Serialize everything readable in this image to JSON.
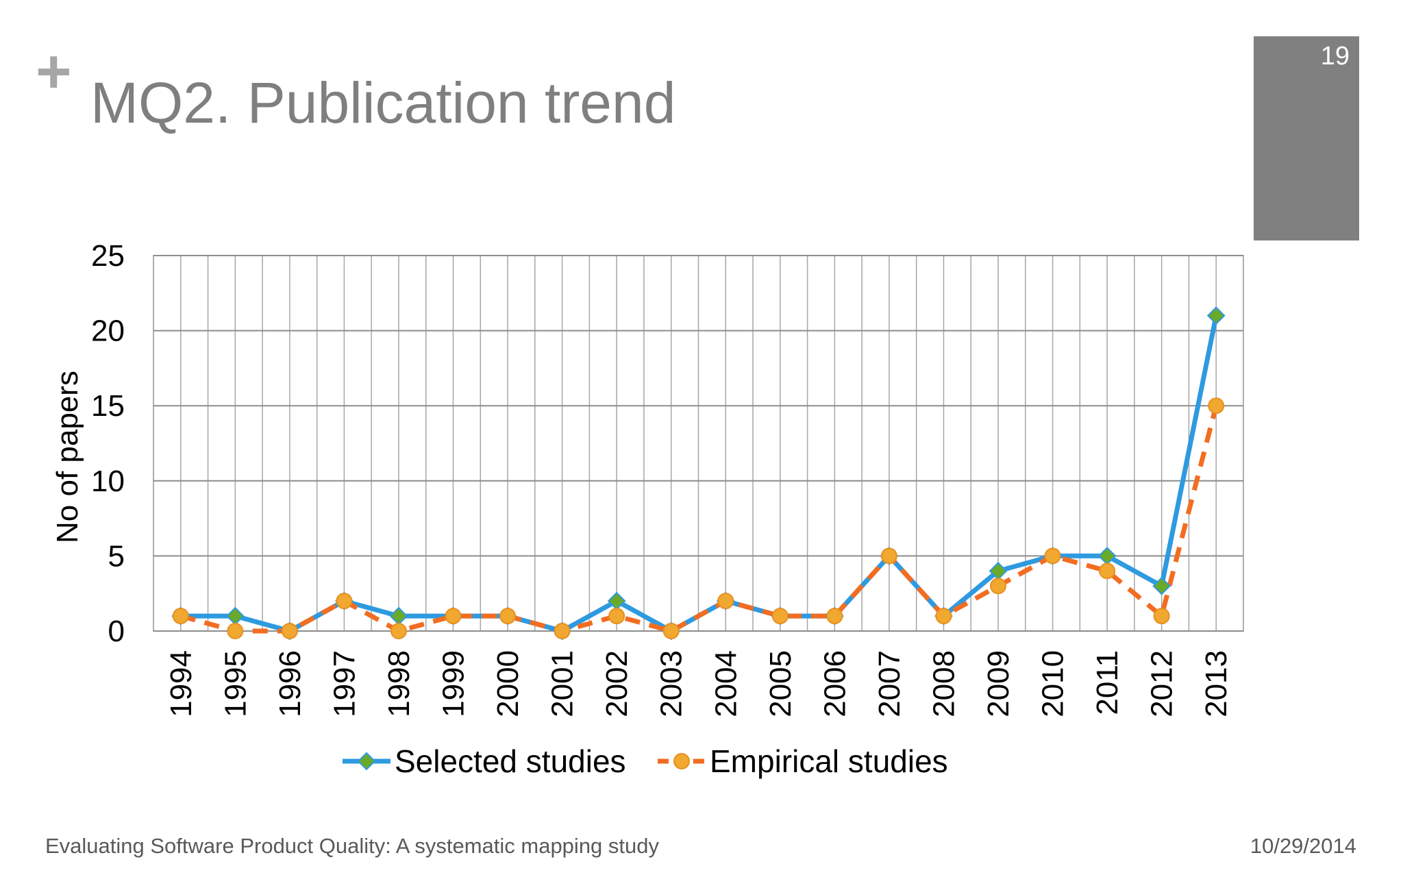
{
  "slide": {
    "plus_glyph": "+",
    "title": "MQ2. Publication trend",
    "page_number": "19",
    "footer_left": "Evaluating Software Product Quality: A systematic mapping study",
    "footer_right": "10/29/2014"
  },
  "chart_data": {
    "type": "line",
    "title": "",
    "xlabel": "",
    "ylabel": "No of papers",
    "x": [
      "1994",
      "1995",
      "1996",
      "1997",
      "1998",
      "1999",
      "2000",
      "2001",
      "2002",
      "2003",
      "2004",
      "2005",
      "2006",
      "2007",
      "2008",
      "2009",
      "2010",
      "2011",
      "2012",
      "2013"
    ],
    "ylim": [
      0,
      25
    ],
    "yticks": [
      0,
      5,
      10,
      15,
      20,
      25
    ],
    "grid": true,
    "legend_position": "bottom",
    "series": [
      {
        "name": "Selected studies",
        "values": [
          1,
          1,
          0,
          2,
          1,
          1,
          1,
          0,
          2,
          0,
          2,
          1,
          1,
          5,
          1,
          4,
          5,
          5,
          3,
          21
        ],
        "line_color": "#2e9ae0",
        "marker": "diamond",
        "marker_color": "#6aaa2a",
        "line_style": "solid"
      },
      {
        "name": "Empirical studies",
        "values": [
          1,
          0,
          0,
          2,
          0,
          1,
          1,
          0,
          1,
          0,
          2,
          1,
          1,
          5,
          1,
          3,
          5,
          4,
          1,
          15
        ],
        "line_color": "#f26d21",
        "marker": "circle",
        "marker_color": "#f0a830",
        "line_style": "dashed"
      }
    ]
  }
}
